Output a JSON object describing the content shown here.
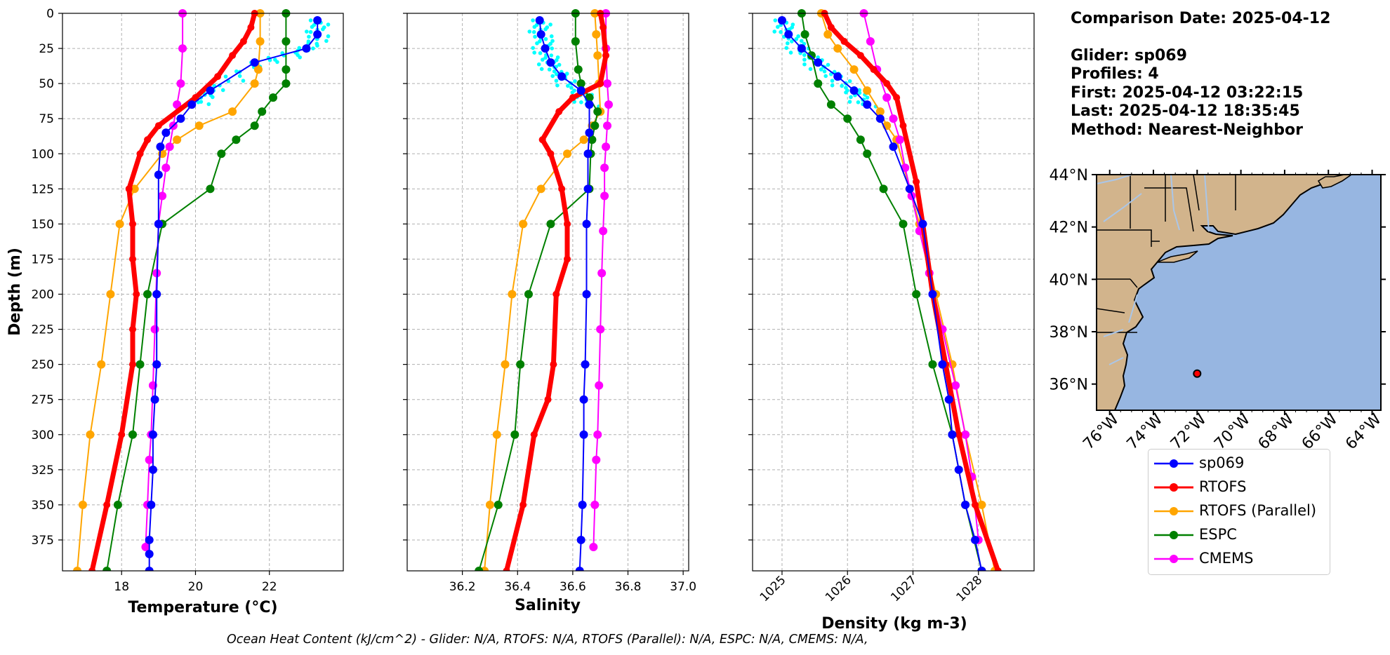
{
  "info": {
    "comparison": "Comparison Date: 2025-04-12",
    "glider": "Glider: sp069",
    "profiles": "Profiles: 4",
    "first": "First: 2025-04-12 03:22:15",
    "last": "Last: 2025-04-12 18:35:45",
    "method": "Method: Nearest-Neighbor"
  },
  "footer": "Ocean Heat Content (kJ/cm^2) - Glider: N/A,  RTOFS: N/A,  RTOFS (Parallel): N/A,  ESPC: N/A,  CMEMS: N/A,",
  "colors": {
    "sp069": "#0000ff",
    "rtofs": "#ff0000",
    "rtofs_parallel": "#ffa500",
    "espc": "#008000",
    "cmems": "#ff00ff",
    "raw_glider": "#00ffff",
    "land": "#d2b48c",
    "ocean": "#97b6e1"
  },
  "chart_data": [
    {
      "type": "line",
      "xlabel": "Temperature (°C)",
      "ylabel": "Depth (m)",
      "xlim": [
        16.4,
        24.0
      ],
      "ylim": [
        397,
        0
      ],
      "xticks": [
        18,
        20,
        22
      ],
      "yticks": [
        0,
        25,
        50,
        75,
        100,
        125,
        150,
        175,
        200,
        225,
        250,
        275,
        300,
        325,
        350,
        375
      ],
      "grid": true,
      "series": [
        {
          "name": "sp069",
          "x": [
            23.3,
            23.3,
            23.0,
            21.6,
            20.4,
            19.9,
            19.6,
            19.2,
            19.05,
            19.0,
            19.0,
            18.95,
            18.95,
            18.9,
            18.85,
            18.85,
            18.8,
            18.75,
            18.75,
            18.75
          ],
          "y": [
            5,
            15,
            25,
            35,
            55,
            65,
            75,
            85,
            95,
            115,
            150,
            200,
            250,
            275,
            300,
            325,
            350,
            375,
            385,
            397
          ]
        },
        {
          "name": "RTOFS",
          "x": [
            21.6,
            21.5,
            21.3,
            21.0,
            20.6,
            20.0,
            19.0,
            18.7,
            18.5,
            18.2,
            18.3,
            18.3,
            18.4,
            18.3,
            18.3,
            18.0,
            17.6,
            17.2
          ],
          "y": [
            0,
            10,
            20,
            30,
            45,
            60,
            80,
            90,
            100,
            125,
            150,
            175,
            200,
            225,
            250,
            300,
            350,
            397
          ]
        },
        {
          "name": "RTOFS (Parallel)",
          "x": [
            21.75,
            21.75,
            21.7,
            21.6,
            21.0,
            20.1,
            19.5,
            19.1,
            18.35,
            17.95,
            17.7,
            17.45,
            17.15,
            16.95,
            16.8
          ],
          "y": [
            0,
            20,
            40,
            50,
            70,
            80,
            90,
            100,
            125,
            150,
            200,
            250,
            300,
            350,
            397
          ]
        },
        {
          "name": "ESPC",
          "x": [
            22.45,
            22.45,
            22.45,
            22.45,
            22.1,
            21.8,
            21.6,
            21.1,
            20.7,
            20.4,
            19.1,
            18.7,
            18.5,
            18.3,
            17.9,
            17.6
          ],
          "y": [
            0,
            20,
            40,
            50,
            60,
            70,
            80,
            90,
            100,
            125,
            150,
            200,
            250,
            300,
            350,
            397
          ]
        },
        {
          "name": "CMEMS",
          "x": [
            19.65,
            19.65,
            19.6,
            19.5,
            19.4,
            19.3,
            19.2,
            19.1,
            19.0,
            18.95,
            18.9,
            18.85,
            18.8,
            18.75,
            18.7,
            18.65
          ],
          "y": [
            0,
            25,
            50,
            65,
            80,
            95,
            110,
            130,
            150,
            185,
            225,
            265,
            300,
            318,
            350,
            380
          ]
        }
      ]
    },
    {
      "type": "line",
      "xlabel": "Salinity",
      "xlim": [
        36.0,
        37.02
      ],
      "ylim": [
        397,
        0
      ],
      "xticks": [
        36.2,
        36.4,
        36.6,
        36.8,
        37.0
      ],
      "grid": true,
      "series": [
        {
          "name": "sp069",
          "x": [
            36.48,
            36.485,
            36.5,
            36.52,
            36.56,
            36.63,
            36.66,
            36.66,
            36.655,
            36.655,
            36.65,
            36.65,
            36.645,
            36.64,
            36.64,
            36.635,
            36.63,
            36.625
          ],
          "y": [
            5,
            15,
            25,
            35,
            45,
            55,
            65,
            85,
            100,
            125,
            150,
            200,
            250,
            275,
            300,
            350,
            375,
            397
          ]
        },
        {
          "name": "RTOFS",
          "x": [
            36.7,
            36.71,
            36.72,
            36.7,
            36.6,
            36.55,
            36.49,
            36.52,
            36.56,
            36.58,
            36.58,
            36.54,
            36.53,
            36.51,
            36.46,
            36.42,
            36.36
          ],
          "y": [
            0,
            10,
            30,
            50,
            60,
            70,
            90,
            100,
            125,
            150,
            175,
            200,
            250,
            275,
            300,
            350,
            397
          ]
        },
        {
          "name": "RTOFS (Parallel)",
          "x": [
            36.68,
            36.685,
            36.69,
            36.695,
            36.7,
            36.67,
            36.64,
            36.58,
            36.485,
            36.42,
            36.38,
            36.355,
            36.325,
            36.3,
            36.28
          ],
          "y": [
            0,
            15,
            30,
            50,
            70,
            80,
            90,
            100,
            125,
            150,
            200,
            250,
            300,
            350,
            397
          ]
        },
        {
          "name": "ESPC",
          "x": [
            36.61,
            36.61,
            36.62,
            36.63,
            36.66,
            36.69,
            36.68,
            36.67,
            36.665,
            36.66,
            36.52,
            36.44,
            36.41,
            36.39,
            36.33,
            36.26
          ],
          "y": [
            0,
            20,
            40,
            50,
            60,
            70,
            80,
            90,
            100,
            125,
            150,
            200,
            250,
            300,
            350,
            397
          ]
        },
        {
          "name": "CMEMS",
          "x": [
            36.72,
            36.72,
            36.725,
            36.73,
            36.725,
            36.72,
            36.715,
            36.715,
            36.71,
            36.705,
            36.7,
            36.695,
            36.69,
            36.685,
            36.68,
            36.675
          ],
          "y": [
            0,
            25,
            50,
            65,
            80,
            95,
            110,
            130,
            155,
            185,
            225,
            265,
            300,
            318,
            350,
            380
          ]
        }
      ]
    },
    {
      "type": "line",
      "xlabel": "Density (kg m-3)",
      "xlim": [
        1024.55,
        1028.85
      ],
      "ylim": [
        397,
        0
      ],
      "xticks": [
        1025,
        1026,
        1027,
        1028
      ],
      "grid": true,
      "series": [
        {
          "name": "sp069",
          "x": [
            1025.0,
            1025.1,
            1025.3,
            1025.55,
            1025.85,
            1026.1,
            1026.3,
            1026.5,
            1026.7,
            1026.95,
            1027.15,
            1027.3,
            1027.45,
            1027.55,
            1027.6,
            1027.7,
            1027.8,
            1027.95,
            1028.05
          ],
          "y": [
            5,
            15,
            25,
            35,
            45,
            55,
            65,
            75,
            95,
            125,
            150,
            200,
            250,
            275,
            300,
            325,
            350,
            375,
            397
          ]
        },
        {
          "name": "RTOFS",
          "x": [
            1025.65,
            1025.75,
            1025.95,
            1026.2,
            1026.4,
            1026.6,
            1026.75,
            1026.85,
            1027.05,
            1027.15,
            1027.3,
            1027.5,
            1027.7,
            1027.95,
            1028.3
          ],
          "y": [
            0,
            10,
            20,
            30,
            40,
            50,
            60,
            80,
            120,
            150,
            200,
            250,
            300,
            350,
            397
          ]
        },
        {
          "name": "RTOFS (Parallel)",
          "x": [
            1025.6,
            1025.7,
            1025.85,
            1026.1,
            1026.3,
            1026.5,
            1026.6,
            1026.75,
            1026.95,
            1027.1,
            1027.35,
            1027.6,
            1027.8,
            1028.05,
            1028.25
          ],
          "y": [
            0,
            15,
            25,
            40,
            55,
            70,
            80,
            90,
            125,
            150,
            200,
            250,
            300,
            350,
            397
          ]
        },
        {
          "name": "ESPC",
          "x": [
            1025.3,
            1025.35,
            1025.45,
            1025.55,
            1025.75,
            1026.0,
            1026.2,
            1026.3,
            1026.55,
            1026.85,
            1027.05,
            1027.3,
            1027.6,
            1027.8,
            1028.05
          ],
          "y": [
            0,
            15,
            30,
            50,
            65,
            75,
            90,
            100,
            125,
            150,
            200,
            250,
            300,
            350,
            397
          ]
        },
        {
          "name": "CMEMS",
          "x": [
            1026.25,
            1026.35,
            1026.45,
            1026.6,
            1026.7,
            1026.8,
            1026.88,
            1026.98,
            1027.1,
            1027.25,
            1027.45,
            1027.65,
            1027.8,
            1027.9,
            1028.0
          ],
          "y": [
            0,
            20,
            40,
            60,
            75,
            90,
            110,
            130,
            155,
            185,
            225,
            265,
            300,
            330,
            375
          ]
        }
      ]
    },
    {
      "type": "scatter",
      "xticks": [
        "76°W",
        "74°W",
        "72°W",
        "70°W",
        "68°W",
        "66°W",
        "64°W"
      ],
      "yticks": [
        "36°N",
        "38°N",
        "40°N",
        "42°N",
        "44°N"
      ],
      "xlim": [
        -76.6,
        -63.6
      ],
      "ylim": [
        35.0,
        44.0
      ],
      "glider_position": {
        "lon": -72.0,
        "lat": 36.4
      }
    }
  ],
  "legend": [
    {
      "label": "sp069",
      "color": "#0000ff"
    },
    {
      "label": "RTOFS",
      "color": "#ff0000"
    },
    {
      "label": "RTOFS (Parallel)",
      "color": "#ffa500"
    },
    {
      "label": "ESPC",
      "color": "#008000"
    },
    {
      "label": "CMEMS",
      "color": "#ff00ff"
    }
  ]
}
